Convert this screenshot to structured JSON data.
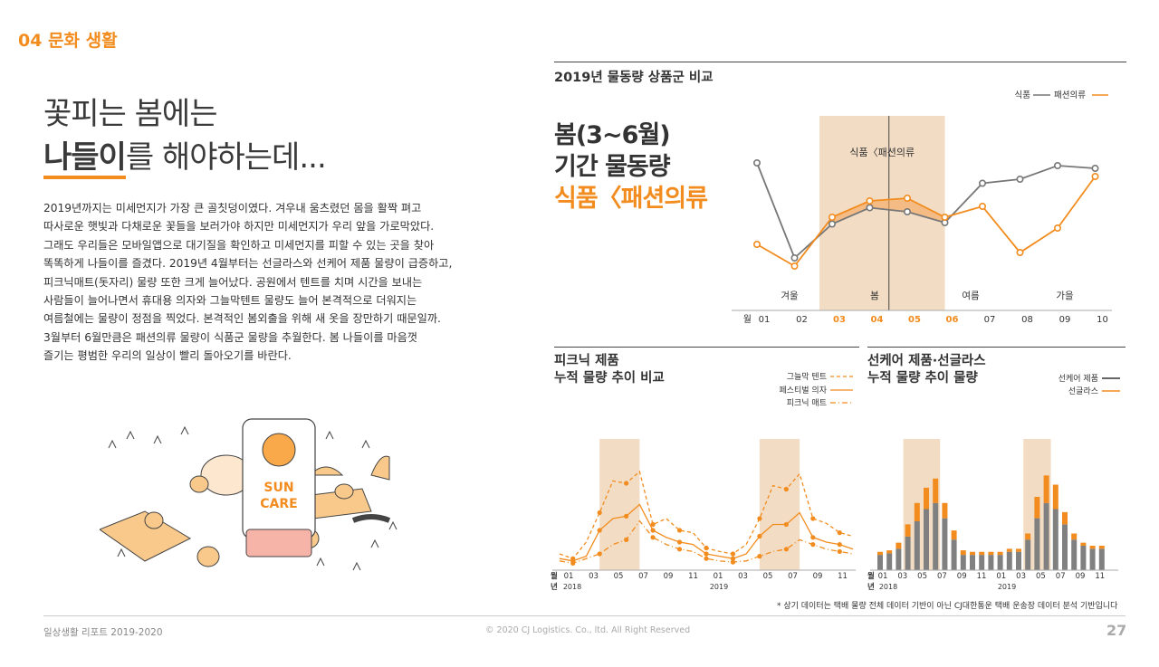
{
  "section_label": "04 문화 생활",
  "headline": {
    "line1": "꽃피는 봄에는",
    "line2_emph": "나들이",
    "line2_rest": "를 해야하는데..."
  },
  "body_lines": [
    "2019년까지는 미세먼지가 가장 큰 골칫덩이였다. 겨우내 움츠렸던 몸을 활짝 펴고",
    "따사로운 햇빛과 다채로운 꽃들을 보러가야 하지만 미세먼지가 우리 앞을 가로막았다.",
    "그래도 우리들은 모바일앱으로 대기질을 확인하고 미세먼지를 피할 수 있는 곳을 찾아",
    "똑똑하게 나들이를 즐겼다. 2019년 4월부터는 선글라스와 선케어 제품 물량이 급증하고,",
    "피크닉매트(돗자리) 물량 또한 크게 늘어났다. 공원에서 텐트를 치며 시간을 보내는",
    "사람들이 늘어나면서 휴대용 의자와 그늘막텐트 물량도 늘어 본격적으로 더워지는",
    "여름철에는 물량이 정점을 찍었다. 본격적인 봄외출을 위해 새 옷을 장만하기 때문일까.",
    "3월부터 6월만큼은 패션의류 물량이 식품군 물량을 추월한다. 봄 나들이를 마음껏",
    "즐기는 평범한 우리의 일상이 빨리 돌아오기를 바란다."
  ],
  "illustration": {
    "sign_text_1": "SUN",
    "sign_text_2": "CARE"
  },
  "big_title": {
    "line1": "봄(3~6월)",
    "line2": "기간 물동량",
    "line3": "식품〈패션의류"
  },
  "colors": {
    "orange": "#f28c1e",
    "gray": "#777777",
    "band": "#f3dcc4",
    "dark": "#333333"
  },
  "chart_data": [
    {
      "type": "line",
      "title": "2019년 물동량 상품군 비교",
      "x_prefix": "월",
      "categories": [
        "01",
        "02",
        "03",
        "04",
        "05",
        "06",
        "07",
        "08",
        "09",
        "10"
      ],
      "highlight_categories": [
        "03",
        "04",
        "05",
        "06"
      ],
      "seasons": [
        "겨울",
        "봄",
        "여름",
        "가을"
      ],
      "band_label": "식품〈패션의류",
      "legend": [
        "식품",
        "패션의류"
      ],
      "series": [
        {
          "name": "식품",
          "color": "#777777",
          "values": [
            80,
            10,
            35,
            47,
            44,
            36,
            65,
            68,
            78,
            76
          ]
        },
        {
          "name": "패션의류",
          "color": "#f28c1e",
          "values": [
            20,
            4,
            40,
            52,
            54,
            40,
            48,
            14,
            32,
            70
          ]
        }
      ],
      "ylim": [
        0,
        100
      ]
    },
    {
      "type": "line",
      "title_line1": "피크닉 제품",
      "title_line2": "누적 물량 추이 비교",
      "x_prefix": "월",
      "year_prefix": "년",
      "tick_labels": [
        "01",
        "03",
        "05",
        "07",
        "09",
        "11",
        "01",
        "03",
        "05",
        "07",
        "09",
        "11"
      ],
      "year_labels": [
        "2018",
        "2019"
      ],
      "legend": [
        "그늘막 텐트",
        "페스티벌 의자",
        "피크닉 매트"
      ],
      "series": [
        {
          "name": "그늘막 텐트",
          "style": "dashed",
          "values": [
            10,
            6,
            20,
            45,
            72,
            70,
            80,
            35,
            40,
            30,
            28,
            15,
            12,
            10,
            18,
            40,
            68,
            65,
            78,
            40,
            36,
            28,
            25
          ]
        },
        {
          "name": "페스티벌 의자",
          "style": "solid",
          "values": [
            6,
            4,
            8,
            30,
            40,
            42,
            52,
            30,
            24,
            20,
            18,
            10,
            8,
            6,
            10,
            25,
            35,
            35,
            45,
            24,
            20,
            18,
            14
          ]
        },
        {
          "name": "피크닉 매트",
          "style": "dashdot",
          "values": [
            4,
            2,
            6,
            10,
            18,
            22,
            38,
            24,
            18,
            14,
            12,
            6,
            4,
            3,
            4,
            8,
            12,
            14,
            22,
            18,
            14,
            12,
            10
          ]
        }
      ],
      "highlight_ranges": [
        [
          3,
          6
        ],
        [
          15,
          18
        ]
      ],
      "ylim": [
        0,
        100
      ]
    },
    {
      "type": "bar",
      "title_line1": "선케어 제품·선글라스",
      "title_line2": "누적 물량 추이 물량",
      "x_prefix": "월",
      "year_prefix": "년",
      "tick_labels": [
        "01",
        "03",
        "05",
        "07",
        "09",
        "11",
        "01",
        "03",
        "05",
        "07",
        "09",
        "11"
      ],
      "year_labels": [
        "2018",
        "2019"
      ],
      "legend": [
        "선케어 제품",
        "선글라스"
      ],
      "series": [
        {
          "name": "선케어 제품",
          "color": "#808080",
          "values": [
            10,
            11,
            14,
            22,
            32,
            40,
            44,
            34,
            20,
            10,
            10,
            10,
            10,
            10,
            12,
            12,
            20,
            34,
            44,
            40,
            30,
            20,
            16,
            14,
            14
          ]
        },
        {
          "name": "선글라스",
          "color": "#f28c1e",
          "values": [
            2,
            2,
            4,
            8,
            12,
            14,
            16,
            10,
            6,
            3,
            2,
            2,
            2,
            2,
            2,
            2,
            4,
            14,
            18,
            16,
            8,
            4,
            2,
            2,
            2
          ]
        }
      ],
      "highlight_ranges": [
        [
          3,
          7
        ],
        [
          16,
          19
        ]
      ],
      "ylim": [
        0,
        80
      ]
    }
  ],
  "footnote": "* 상기 데이터는 택배 물량 전체 데이터 기반이 아닌 CJ대한통운 택배 운송장 데이터 분석 기반입니다",
  "footer": {
    "left": "일상생활 리포트 2019-2020",
    "center": "© 2020 CJ Logistics. Co., ltd. All Right Reserved",
    "page": "27"
  }
}
